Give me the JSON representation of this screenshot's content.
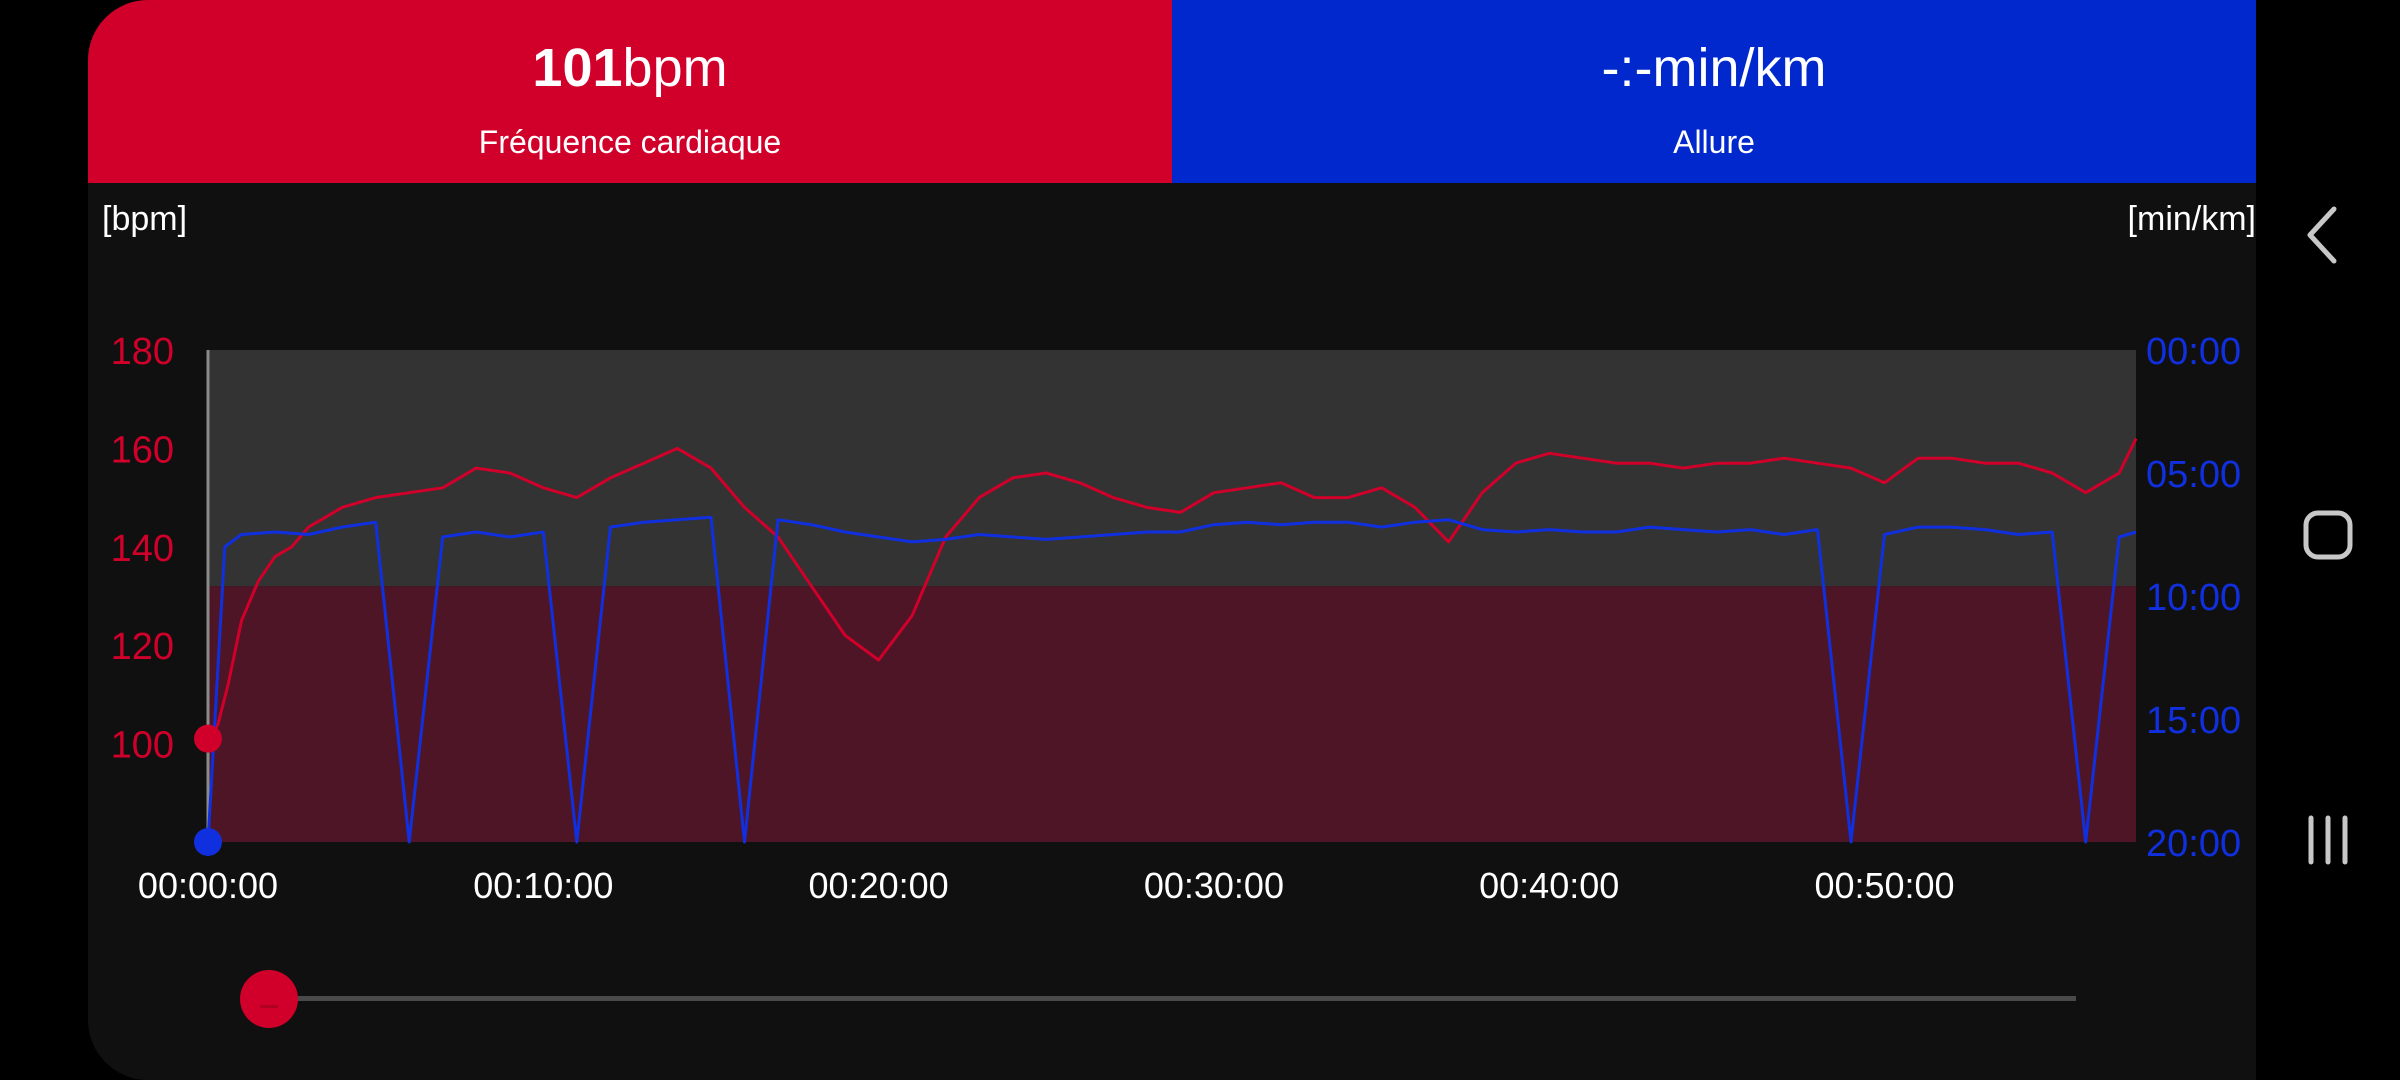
{
  "metrics": {
    "heart_rate": {
      "value": "101",
      "unit": "bpm",
      "label": "Fréquence cardiaque",
      "color": "#d0002a"
    },
    "pace": {
      "value": "-:-",
      "unit": "min/km",
      "label": "Allure",
      "color": "#0028cc"
    }
  },
  "chart_unit_left": "[bpm]",
  "chart_unit_right": "[min/km]",
  "chart_data": {
    "type": "line",
    "x_ticks": [
      "00:00:00",
      "00:10:00",
      "00:20:00",
      "00:30:00",
      "00:40:00",
      "00:50:00"
    ],
    "y_left_ticks": [
      "180",
      "160",
      "140",
      "120",
      "100"
    ],
    "y_right_ticks": [
      "00:00",
      "05:00",
      "10:00",
      "15:00",
      "20:00"
    ],
    "y_left_range": [
      80,
      180
    ],
    "y_right_range": [
      0,
      20
    ],
    "x_range_minutes": [
      0,
      57.5
    ],
    "series": [
      {
        "color": "#d0002a",
        "axis": "left",
        "points": [
          [
            0,
            100
          ],
          [
            0.3,
            104
          ],
          [
            0.6,
            112
          ],
          [
            1,
            125
          ],
          [
            1.5,
            133
          ],
          [
            2,
            138
          ],
          [
            2.5,
            140
          ],
          [
            3,
            144
          ],
          [
            3.5,
            146
          ],
          [
            4,
            148
          ],
          [
            5,
            150
          ],
          [
            6,
            151
          ],
          [
            7,
            152
          ],
          [
            8,
            156
          ],
          [
            9,
            155
          ],
          [
            10,
            152
          ],
          [
            11,
            150
          ],
          [
            12,
            154
          ],
          [
            13,
            157
          ],
          [
            14,
            160
          ],
          [
            15,
            156
          ],
          [
            16,
            148
          ],
          [
            17,
            142
          ],
          [
            18,
            132
          ],
          [
            19,
            122
          ],
          [
            20,
            117
          ],
          [
            21,
            126
          ],
          [
            22,
            142
          ],
          [
            23,
            150
          ],
          [
            24,
            154
          ],
          [
            25,
            155
          ],
          [
            26,
            153
          ],
          [
            27,
            150
          ],
          [
            28,
            148
          ],
          [
            29,
            147
          ],
          [
            30,
            151
          ],
          [
            31,
            152
          ],
          [
            32,
            153
          ],
          [
            33,
            150
          ],
          [
            34,
            150
          ],
          [
            35,
            152
          ],
          [
            36,
            148
          ],
          [
            37,
            141
          ],
          [
            38,
            151
          ],
          [
            39,
            157
          ],
          [
            40,
            159
          ],
          [
            41,
            158
          ],
          [
            42,
            157
          ],
          [
            43,
            157
          ],
          [
            44,
            156
          ],
          [
            45,
            157
          ],
          [
            46,
            157
          ],
          [
            47,
            158
          ],
          [
            48,
            157
          ],
          [
            49,
            156
          ],
          [
            50,
            153
          ],
          [
            51,
            158
          ],
          [
            52,
            158
          ],
          [
            53,
            157
          ],
          [
            54,
            157
          ],
          [
            55,
            155
          ],
          [
            56,
            151
          ],
          [
            57,
            155
          ],
          [
            57.5,
            162
          ]
        ]
      },
      {
        "color": "#1030e0",
        "axis": "right",
        "points": [
          [
            0,
            20
          ],
          [
            0.5,
            8
          ],
          [
            1,
            7.5
          ],
          [
            2,
            7.4
          ],
          [
            3,
            7.5
          ],
          [
            4,
            7.2
          ],
          [
            5,
            7.0
          ],
          [
            6,
            20
          ],
          [
            7,
            7.6
          ],
          [
            8,
            7.4
          ],
          [
            9,
            7.6
          ],
          [
            10,
            7.4
          ],
          [
            11,
            20
          ],
          [
            12,
            7.2
          ],
          [
            13,
            7.0
          ],
          [
            14,
            6.9
          ],
          [
            15,
            6.8
          ],
          [
            16,
            20
          ],
          [
            17,
            6.9
          ],
          [
            18,
            7.1
          ],
          [
            19,
            7.4
          ],
          [
            20,
            7.6
          ],
          [
            21,
            7.8
          ],
          [
            22,
            7.7
          ],
          [
            23,
            7.5
          ],
          [
            24,
            7.6
          ],
          [
            25,
            7.7
          ],
          [
            26,
            7.6
          ],
          [
            27,
            7.5
          ],
          [
            28,
            7.4
          ],
          [
            29,
            7.4
          ],
          [
            30,
            7.1
          ],
          [
            31,
            7.0
          ],
          [
            32,
            7.1
          ],
          [
            33,
            7.0
          ],
          [
            34,
            7.0
          ],
          [
            35,
            7.2
          ],
          [
            36,
            7.0
          ],
          [
            37,
            6.9
          ],
          [
            38,
            7.3
          ],
          [
            39,
            7.4
          ],
          [
            40,
            7.3
          ],
          [
            41,
            7.4
          ],
          [
            42,
            7.4
          ],
          [
            43,
            7.2
          ],
          [
            44,
            7.3
          ],
          [
            45,
            7.4
          ],
          [
            46,
            7.3
          ],
          [
            47,
            7.5
          ],
          [
            48,
            7.3
          ],
          [
            49,
            20
          ],
          [
            50,
            7.5
          ],
          [
            51,
            7.2
          ],
          [
            52,
            7.2
          ],
          [
            53,
            7.3
          ],
          [
            54,
            7.5
          ],
          [
            55,
            7.4
          ],
          [
            56,
            20
          ],
          [
            57,
            7.6
          ],
          [
            57.5,
            7.4
          ]
        ]
      }
    ],
    "zones": [
      {
        "from": 80,
        "to": 132,
        "color": "#4d1526"
      },
      {
        "from": 132,
        "to": 180,
        "color": "#333333"
      }
    ],
    "current": {
      "hr": 101,
      "pace": 20
    }
  },
  "navbar": {
    "back_icon": "chevron-left-icon",
    "home_icon": "rounded-square-icon",
    "recents_icon": "three-bars-icon"
  }
}
